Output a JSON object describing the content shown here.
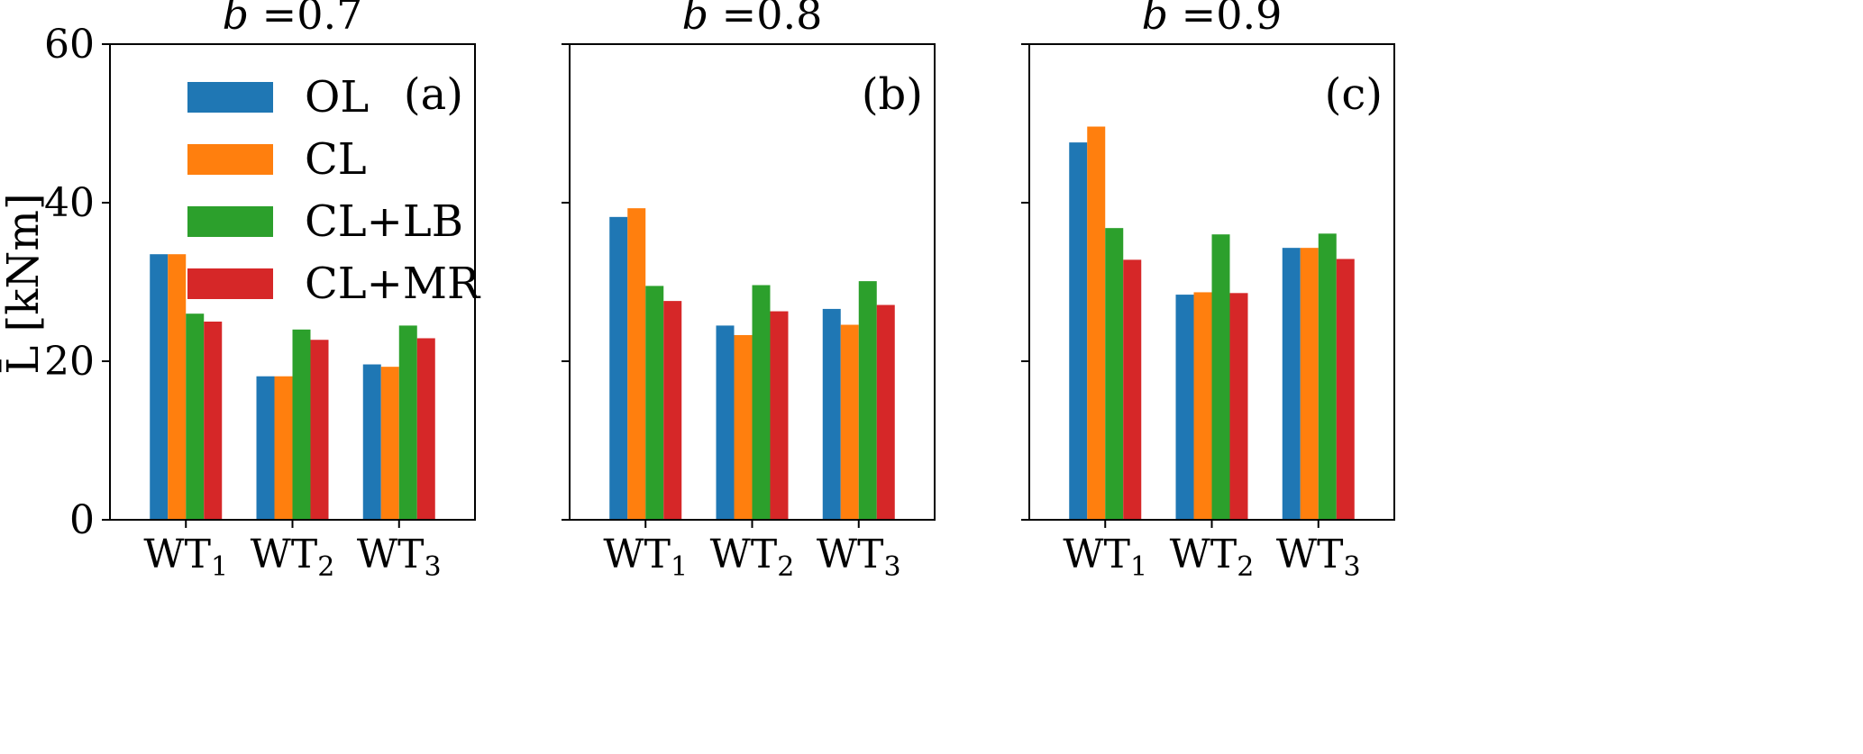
{
  "chart_data": {
    "type": "bar",
    "ylabel": "L̄ [kNm]",
    "ylim": [
      0,
      60
    ],
    "yticks": [
      0,
      20,
      40,
      60
    ],
    "grid": false,
    "legend": {
      "placement": "upper-left of panel (a)",
      "entries": [
        {
          "name": "OL",
          "color": "#1f77b4"
        },
        {
          "name": "CL",
          "color": "#ff7f0e"
        },
        {
          "name": "CL+LB",
          "color": "#2ca02c"
        },
        {
          "name": "CL+MR",
          "color": "#d62728"
        }
      ]
    },
    "categories": [
      {
        "base": "WT",
        "sub": "1"
      },
      {
        "base": "WT",
        "sub": "2"
      },
      {
        "base": "WT",
        "sub": "3"
      }
    ],
    "panels": [
      {
        "title_var": "b",
        "title_val": " =0.7",
        "panel_label": "(a)",
        "series": [
          {
            "name": "OL",
            "values": [
              33.5,
              18.1,
              19.6
            ]
          },
          {
            "name": "CL",
            "values": [
              33.5,
              18.1,
              19.3
            ]
          },
          {
            "name": "CL+LB",
            "values": [
              26.0,
              24.0,
              24.5
            ]
          },
          {
            "name": "CL+MR",
            "values": [
              25.0,
              22.7,
              22.9
            ]
          }
        ]
      },
      {
        "title_var": "b",
        "title_val": " =0.8",
        "panel_label": "(b)",
        "series": [
          {
            "name": "OL",
            "values": [
              38.2,
              24.5,
              26.6
            ]
          },
          {
            "name": "CL",
            "values": [
              39.3,
              23.3,
              24.6
            ]
          },
          {
            "name": "CL+LB",
            "values": [
              29.5,
              29.6,
              30.1
            ]
          },
          {
            "name": "CL+MR",
            "values": [
              27.6,
              26.3,
              27.1
            ]
          }
        ]
      },
      {
        "title_var": "b",
        "title_val": " =0.9",
        "panel_label": "(c)",
        "series": [
          {
            "name": "OL",
            "values": [
              47.6,
              28.4,
              34.3
            ]
          },
          {
            "name": "CL",
            "values": [
              49.6,
              28.7,
              34.3
            ]
          },
          {
            "name": "CL+LB",
            "values": [
              36.8,
              36.0,
              36.1
            ]
          },
          {
            "name": "CL+MR",
            "values": [
              32.8,
              28.6,
              32.9
            ]
          }
        ]
      }
    ]
  }
}
